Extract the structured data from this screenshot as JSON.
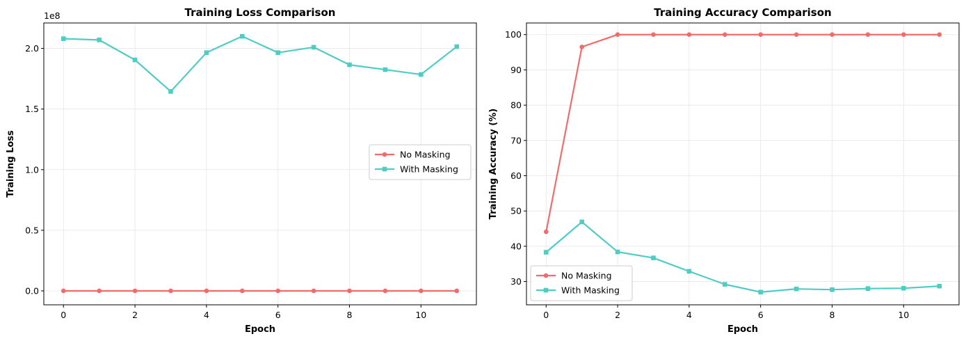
{
  "chart_data": [
    {
      "type": "line",
      "title": "Training Loss Comparison",
      "xlabel": "Epoch",
      "ylabel": "Training Loss",
      "y_offset_label": "1e8",
      "x": [
        0,
        1,
        2,
        3,
        4,
        5,
        6,
        7,
        8,
        9,
        10,
        11
      ],
      "xlim": [
        -0.55,
        11.55
      ],
      "ylim": [
        -0.115,
        2.21
      ],
      "y_scale_multiplier": 100000000,
      "xticks": [
        0,
        2,
        4,
        6,
        8,
        10
      ],
      "xtick_labels": [
        "0",
        "2",
        "4",
        "6",
        "8",
        "10"
      ],
      "yticks": [
        0.0,
        0.5,
        1.0,
        1.5,
        2.0
      ],
      "ytick_labels": [
        "0.0",
        "0.5",
        "1.0",
        "1.5",
        "2.0"
      ],
      "grid": true,
      "legend_position": "center-right",
      "series": [
        {
          "name": "No Masking",
          "color": "#f26b6b",
          "marker": "circle",
          "values": [
            0,
            0,
            0,
            0,
            0,
            0,
            0,
            0,
            0,
            0,
            0,
            0
          ]
        },
        {
          "name": "With Masking",
          "color": "#4ecdc4",
          "marker": "square",
          "values": [
            2.08,
            2.07,
            1.905,
            1.645,
            1.965,
            2.1,
            1.965,
            2.01,
            1.865,
            1.825,
            1.785,
            2.015
          ]
        }
      ]
    },
    {
      "type": "line",
      "title": "Training Accuracy Comparison",
      "xlabel": "Epoch",
      "ylabel": "Training Accuracy (%)",
      "x": [
        0,
        1,
        2,
        3,
        4,
        5,
        6,
        7,
        8,
        9,
        10,
        11
      ],
      "xlim": [
        -0.55,
        11.55
      ],
      "ylim": [
        23.4,
        103.3
      ],
      "xticks": [
        0,
        2,
        4,
        6,
        8,
        10
      ],
      "xtick_labels": [
        "0",
        "2",
        "4",
        "6",
        "8",
        "10"
      ],
      "yticks": [
        30,
        40,
        50,
        60,
        70,
        80,
        90,
        100
      ],
      "ytick_labels": [
        "30",
        "40",
        "50",
        "60",
        "70",
        "80",
        "90",
        "100"
      ],
      "grid": true,
      "legend_position": "lower-left",
      "series": [
        {
          "name": "No Masking",
          "color": "#f26b6b",
          "marker": "circle",
          "values": [
            44.1,
            96.5,
            100,
            100,
            100,
            100,
            100,
            100,
            100,
            100,
            100,
            100
          ]
        },
        {
          "name": "With Masking",
          "color": "#4ecdc4",
          "marker": "square",
          "values": [
            38.3,
            46.9,
            38.4,
            36.7,
            32.9,
            29.2,
            27.0,
            27.9,
            27.7,
            28.0,
            28.1,
            28.7
          ]
        }
      ]
    }
  ]
}
